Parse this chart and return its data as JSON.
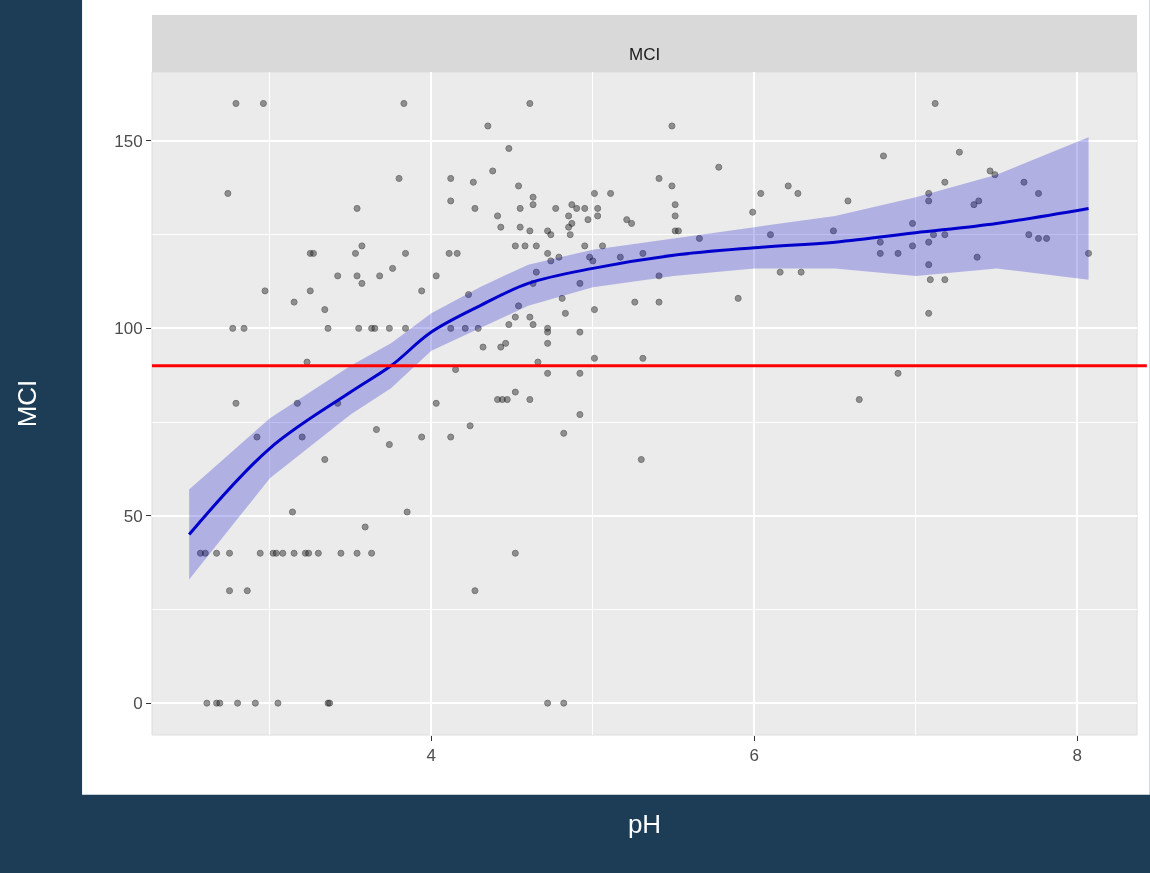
{
  "chart_data": {
    "type": "scatter",
    "title": "MCI",
    "xlabel": "pH",
    "ylabel": "MCI",
    "xlim": [
      2.27,
      8.37
    ],
    "ylim": [
      -8.5,
      168.4
    ],
    "xticks": [
      4,
      6,
      8
    ],
    "yticks": [
      0,
      50,
      100,
      150
    ],
    "grid": true,
    "marker": "circle",
    "ref_lines": [
      {
        "axis": "y",
        "value": 90,
        "color": "#ff0000"
      }
    ],
    "series": [
      {
        "color": "#333333",
        "x": [
          2.79,
          2.96,
          3.83,
          4.61,
          7.12,
          2.74,
          3.8,
          4.12,
          4.26,
          4.12,
          4.27,
          3.54,
          3.57,
          3.53,
          3.25,
          3.27,
          3.84,
          4.11,
          4.16,
          3.76,
          3.42,
          3.54,
          3.57,
          3.68,
          4.03,
          2.97,
          3.25,
          3.94,
          3.15,
          3.34,
          4.23,
          2.77,
          2.84,
          3.36,
          3.55,
          3.63,
          3.65,
          3.74,
          3.84,
          4.12,
          4.21,
          4.29,
          3.23,
          4.15,
          2.79,
          3.17,
          3.42,
          4.03,
          3.66,
          3.74,
          3.94,
          4.12,
          4.24,
          2.92,
          3.2,
          3.34,
          3.14,
          3.85,
          3.59,
          2.57,
          2.6,
          2.67,
          2.75,
          2.94,
          3.02,
          3.04,
          3.08,
          3.15,
          3.22,
          3.24,
          3.3,
          3.44,
          3.54,
          3.63,
          2.75,
          2.86,
          4.27,
          2.61,
          2.67,
          2.69,
          2.8,
          2.91,
          3.05,
          3.36,
          3.37,
          4.35,
          5.49,
          4.48,
          4.38,
          5.78,
          4.54,
          5.41,
          5.49,
          4.63,
          4.63,
          4.41,
          4.43,
          4.55,
          4.55,
          4.61,
          4.77,
          4.87,
          4.9,
          4.95,
          5.01,
          5.11,
          5.03,
          5.03,
          4.85,
          4.87,
          4.85,
          4.86,
          4.97,
          4.72,
          4.74,
          5.21,
          5.24,
          5.51,
          5.51,
          5.51,
          5.53,
          5.66,
          4.52,
          4.58,
          4.65,
          4.72,
          4.74,
          4.79,
          4.95,
          5.06,
          4.98,
          5.0,
          5.17,
          5.31,
          5.41,
          4.65,
          4.63,
          4.92,
          4.81,
          4.83,
          5.01,
          5.26,
          5.41,
          5.9,
          5.99,
          6.04,
          6.1,
          6.16,
          6.21,
          4.54,
          4.52,
          4.48,
          4.61,
          4.63,
          4.72,
          4.72,
          4.72,
          4.32,
          4.43,
          4.46,
          4.92,
          5.01,
          5.31,
          4.66,
          4.72,
          4.92,
          4.52,
          4.61,
          4.41,
          4.44,
          4.47,
          4.92,
          4.82,
          5.3,
          4.52,
          4.72,
          4.82,
          6.8,
          7.27,
          6.27,
          6.58,
          6.49,
          6.29,
          6.78,
          6.78,
          6.89,
          6.98,
          6.98,
          7.08,
          7.08,
          7.08,
          7.08,
          7.09,
          7.18,
          7.08,
          7.11,
          7.18,
          7.18,
          7.36,
          7.39,
          7.38,
          7.46,
          7.49,
          7.67,
          7.76,
          7.7,
          7.76,
          7.81,
          8.07,
          6.89,
          6.65
        ],
        "values": [
          160,
          160,
          160,
          160,
          160,
          136,
          140,
          140,
          139,
          134,
          132,
          132,
          122,
          120,
          120,
          120,
          120,
          120,
          120,
          116,
          114,
          114,
          112,
          114,
          114,
          110,
          110,
          110,
          107,
          105,
          109,
          100,
          100,
          100,
          100,
          100,
          100,
          100,
          100,
          100,
          100,
          100,
          91,
          89,
          80,
          80,
          80,
          80,
          73,
          69,
          71,
          71,
          74,
          71,
          71,
          65,
          51,
          51,
          47,
          40,
          40,
          40,
          40,
          40,
          40,
          40,
          40,
          40,
          40,
          40,
          40,
          40,
          40,
          40,
          30,
          30,
          30,
          0,
          0,
          0,
          0,
          0,
          0,
          0,
          0,
          154,
          154,
          148,
          142,
          143,
          138,
          140,
          138,
          135,
          133,
          130,
          127,
          132,
          127,
          126,
          132,
          133,
          132,
          132,
          136,
          136,
          132,
          130,
          130,
          128,
          127,
          125,
          129,
          126,
          125,
          129,
          128,
          133,
          130,
          126,
          126,
          124,
          122,
          122,
          122,
          120,
          118,
          119,
          122,
          122,
          119,
          118,
          119,
          120,
          114,
          115,
          112,
          112,
          108,
          104,
          105,
          107,
          107,
          108,
          131,
          136,
          125,
          115,
          138,
          106,
          103,
          101,
          103,
          101,
          100,
          99,
          96,
          95,
          95,
          96,
          99,
          92,
          92,
          91,
          88,
          88,
          83,
          81,
          81,
          81,
          81,
          77,
          72,
          65,
          40,
          0,
          0,
          146,
          147,
          136,
          134,
          126,
          115,
          123,
          120,
          120,
          122,
          128,
          136,
          134,
          123,
          117,
          113,
          113,
          104,
          125,
          139,
          125,
          133,
          134,
          119,
          142,
          141,
          139,
          136,
          125,
          124,
          124,
          120,
          88,
          81
        ]
      },
      {
        "type": "line",
        "color": "#0000cc",
        "marker": "none",
        "x": [
          2.5,
          3,
          3.5,
          3.75,
          4,
          4.3,
          4.6,
          5,
          5.5,
          6,
          6.5,
          7,
          7.5,
          8.07
        ],
        "values": [
          45,
          68,
          83,
          90,
          99,
          106,
          112,
          116,
          119.5,
          121.5,
          123,
          125.5,
          128,
          132
        ],
        "lower": [
          33,
          60,
          77,
          84,
          94,
          100,
          106,
          111,
          114,
          116,
          116,
          114,
          116,
          113
        ],
        "upper": [
          57,
          76,
          90,
          96,
          104,
          111,
          117,
          121,
          124,
          127,
          130,
          135,
          141,
          151
        ]
      }
    ]
  }
}
